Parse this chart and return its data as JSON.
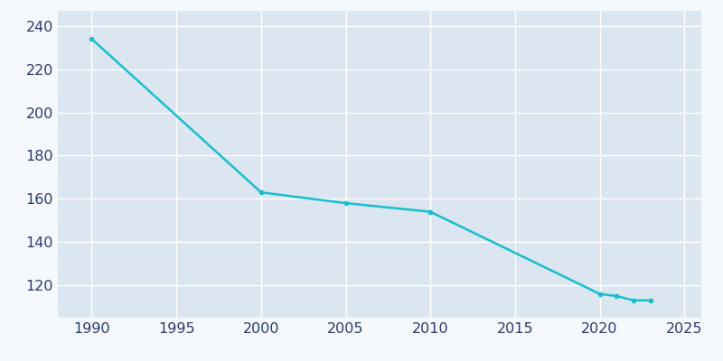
{
  "years": [
    1990,
    2000,
    2005,
    2010,
    2020,
    2021,
    2022,
    2023
  ],
  "population": [
    234,
    163,
    158,
    154,
    116,
    115,
    113,
    113
  ],
  "line_color": "#17becf",
  "plot_bg_color": "#dce6f0",
  "fig_bg_color": "#f5f8fc",
  "grid_color": "#ffffff",
  "tick_color": "#2d3a6e",
  "xlim": [
    1988,
    2026
  ],
  "ylim": [
    105,
    247
  ],
  "xticks": [
    1990,
    1995,
    2000,
    2005,
    2010,
    2015,
    2020,
    2025
  ],
  "yticks": [
    120,
    140,
    160,
    180,
    200,
    220,
    240
  ],
  "linewidth": 1.8,
  "tick_labelsize": 11.5
}
